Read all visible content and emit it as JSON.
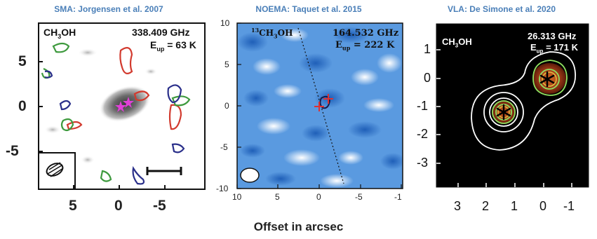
{
  "panels": [
    {
      "title": "SMA: Jorgensen et al. 2007",
      "molecule": "CH3OH",
      "frequency": "338.409 GHz",
      "eup": "Eup = 63 K",
      "x_ticks": [
        "5",
        "0",
        "-5"
      ],
      "y_ticks": [
        "5",
        "0",
        "-5"
      ]
    },
    {
      "title": "NOEMA: Taquet et al. 2015",
      "molecule": "13CH3OH",
      "frequency": "164.532 GHz",
      "eup": "Eup = 222 K",
      "x_ticks": [
        "10",
        "5",
        "0",
        "-5",
        "-1"
      ],
      "y_ticks": [
        "10",
        "5",
        "0",
        "-5",
        "-10"
      ]
    },
    {
      "title": "VLA: De Simone et al. 2020",
      "molecule": "CH3OH",
      "frequency": "26.313 GHz",
      "eup": "Eup = 171 K",
      "x_ticks": [
        "3",
        "2",
        "1",
        "0",
        "-1"
      ],
      "y_ticks": [
        "1",
        "0",
        "-1",
        "-2",
        "-3"
      ]
    }
  ],
  "xlabel": "Offset in arcsec",
  "colors": {
    "title": "#4a7fb8",
    "red_contour": "#d23a2e",
    "green_contour": "#3e9a3e",
    "blue_contour": "#2a2f8a",
    "magenta_star": "#e040d8",
    "noema_background": "#3a7fd0",
    "vla_background": "#000000",
    "vla_emission": "#b8501a",
    "vla_ring": "#8fe060"
  }
}
